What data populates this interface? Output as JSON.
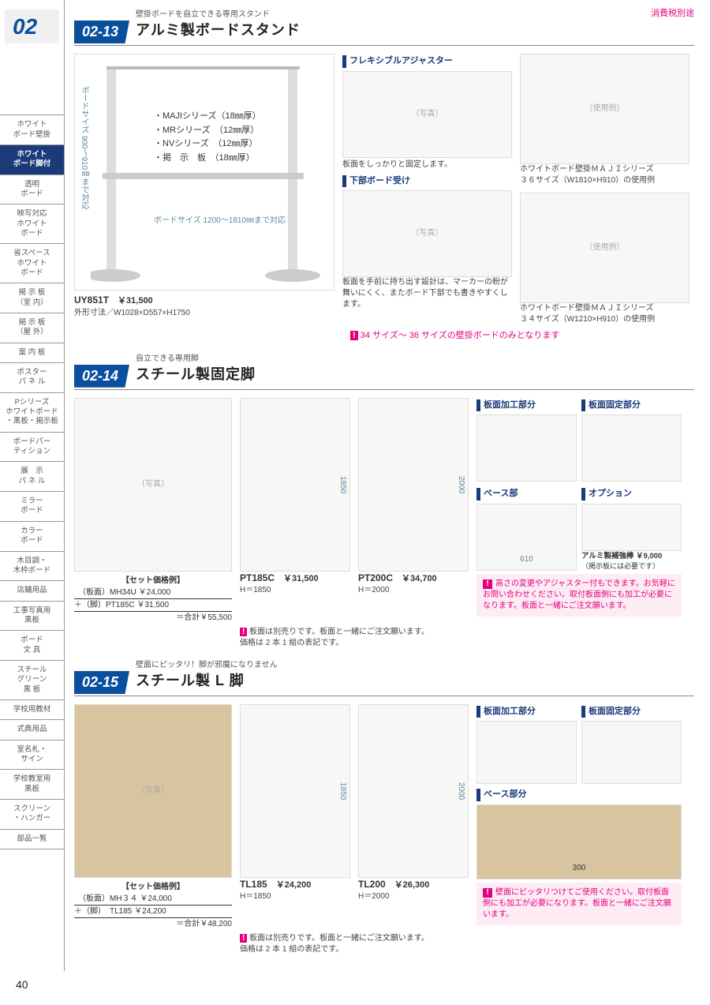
{
  "page_number": "40",
  "tax_note": "消費税別途",
  "chapter": "02",
  "sidebar": [
    "ホワイト\nボード壁掛",
    "ホワイト\nボード脚付",
    "透明\nボード",
    "映写対応\nホワイト\nボード",
    "省スペース\nホワイト\nボード",
    "掲 示 板\n（室 内）",
    "掲 示 板\n（屋 外）",
    "案 内 板",
    "ポスター\nパ ネ ル",
    "Pシリーズ\nホワイトボード\n・黒板・掲示板",
    "ボードパー\nティション",
    "展　示\nパ ネ ル",
    "ミラー\nボード",
    "カラー\nボード",
    "木目調・\n木枠ボード",
    "店舗用品",
    "工事写真用\n黒板",
    "ボード\n文 具",
    "スチール\nグリーン\n黒 板",
    "学校用教材",
    "式典用品",
    "室名札・\nサイン",
    "学校教室用\n黒板",
    "スクリーン\n・ハンガー",
    "部品一覧"
  ],
  "sidebar_active_index": 1,
  "s13": {
    "tag": "02-13",
    "pre": "壁掛ボードを自立できる専用スタンド",
    "title": "アルミ製ボードスタンド",
    "dims_v": "ボードサイズ\n900〜910㎜まで対応",
    "dims_h": "ボードサイズ\n1200〜1810㎜まで対応",
    "features": [
      "・MAJIシリーズ（18㎜厚）",
      "・MRシリーズ　（12㎜厚）",
      "・NVシリーズ　（12㎜厚）",
      "・掲　示　板　（18㎜厚）"
    ],
    "code": "UY851T",
    "price": "￥31,500",
    "spec": "外形寸法／W1028×D557×H1750",
    "cap1": "フレキシブルアジャスター",
    "txt1": "板面をしっかりと固定します。",
    "cap2": "下部ボード受け",
    "txt2": "板面を手前に持ち出す設計は、マーカーの粉が舞いにくく、またボード下部でも書きやすくします。",
    "ex1": "ホワイトボード壁掛ＭＡＪＩシリーズ\n３６サイズ（W1810×H910）の使用例",
    "ex2": "ホワイトボード壁掛ＭＡＪＩシリーズ\n３４サイズ（W1210×H910）の使用例",
    "warn": "34 サイズ〜 36 サイズの壁掛ボードのみとなります"
  },
  "s14": {
    "tag": "02-14",
    "pre": "自立できる専用脚",
    "title": "スチール製固定脚",
    "set": {
      "hdr": "【セット価格例】",
      "l1": "　（板面）MH34U ￥24,000",
      "l2": "＋（脚）PT185C ￥31,500",
      "sum": "＝合計￥55,500"
    },
    "p1": {
      "code": "PT185C",
      "price": "￥31,500",
      "spec": "H＝1850",
      "dim": "1850"
    },
    "p2": {
      "code": "PT200C",
      "price": "￥34,700",
      "spec": "H＝2000",
      "dim": "2000"
    },
    "cap_a": "板面加工部分",
    "cap_b": "板面固定部分",
    "cap_c": "ベース部",
    "cap_d": "オプション",
    "base_dim": "610",
    "opt": "アルミ製補強棒 ￥9,000",
    "opt2": "（掲示板には必要です）",
    "note_sell": "板面は別売りです。板面と一緒にご注文願います。\n価格は 2 本 1 組の表記です。",
    "warn": "高さの変更やアジャスター付もできます。お気軽にお問い合わせください。取付板面側にも加工が必要になります。板面と一緒にご注文願います。"
  },
  "s15": {
    "tag": "02-15",
    "pre": "壁面にピッタリ！脚が邪魔になりません",
    "title": "スチール製 L 脚",
    "set": {
      "hdr": "【セット価格例】",
      "l1": "　（板面）MH３４ ￥24,000",
      "l2": "＋（脚）　TL185 ￥24,200",
      "sum": "＝合計￥48,200"
    },
    "p1": {
      "code": "TL185",
      "price": "￥24,200",
      "spec": "H＝1850",
      "dim": "1850"
    },
    "p2": {
      "code": "TL200",
      "price": "￥26,300",
      "spec": "H＝2000",
      "dim": "2000"
    },
    "cap_a": "板面加工部分",
    "cap_b": "板面固定部分",
    "cap_c": "ベース部分",
    "base_dim": "300",
    "note_sell": "板面は別売りです。板面と一緒にご注文願います。\n価格は 2 本 1 組の表記です。",
    "warn": "壁面にピッタリつけてご使用ください。取付板面側にも加工が必要になります。板面と一緒にご注文願います。"
  }
}
